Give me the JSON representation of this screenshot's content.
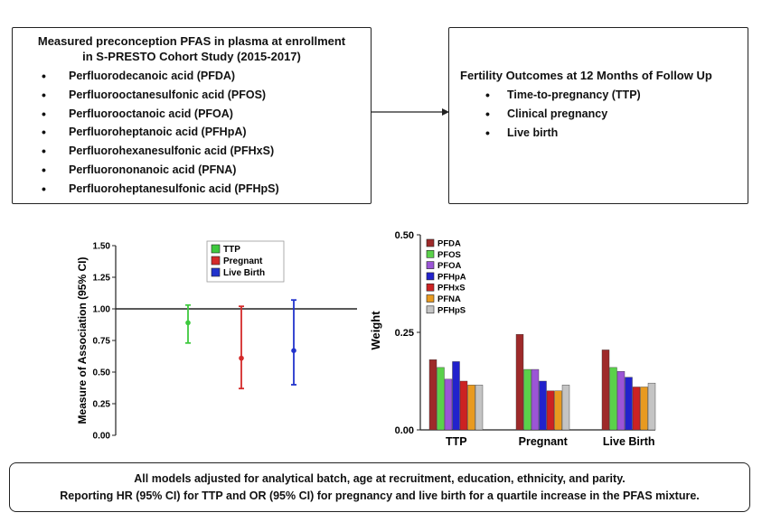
{
  "exposure": {
    "title_line1": "Measured preconception PFAS in plasma at enrollment",
    "title_line2": "in S-PRESTO Cohort Study (2015-2017)",
    "items": [
      "Perfluorodecanoic acid (PFDA)",
      "Perfluorooctanesulfonic acid (PFOS)",
      "Perfluorooctanoic acid (PFOA)",
      "Perfluoroheptanoic acid (PFHpA)",
      "Perfluorohexanesulfonic acid (PFHxS)",
      "Perfluorononanoic acid (PFNA)",
      "Perfluoroheptanesulfonic acid (PFHpS)"
    ]
  },
  "outcomes": {
    "title": "Fertility Outcomes at 12 Months of Follow Up",
    "items": [
      "Time-to-pregnancy (TTP)",
      "Clinical pregnancy",
      "Live birth"
    ]
  },
  "footer": {
    "line1": "All models adjusted for analytical batch, age at recruitment, education, ethnicity, and parity.",
    "line2": "Reporting HR (95% CI) for TTP and OR (95% CI) for pregnancy and live birth for a quartile increase in the PFAS mixture."
  },
  "chart_data": [
    {
      "type": "scatter",
      "ylabel": "Measure of Association (95% CI)",
      "ylim": [
        0,
        1.5
      ],
      "yticks": [
        "0.00",
        "0.25",
        "0.50",
        "0.75",
        "1.00",
        "1.25",
        "1.50"
      ],
      "ytick_values": [
        0,
        0.25,
        0.5,
        0.75,
        1.0,
        1.25,
        1.5
      ],
      "reference_line": 1.0,
      "legend_position": "top-center",
      "series": [
        {
          "name": "TTP",
          "color": "#3ec93e",
          "estimate": 0.89,
          "lower": 0.73,
          "upper": 1.03
        },
        {
          "name": "Pregnant",
          "color": "#d42a2a",
          "estimate": 0.61,
          "lower": 0.37,
          "upper": 1.02
        },
        {
          "name": "Live Birth",
          "color": "#2233cc",
          "estimate": 0.67,
          "lower": 0.4,
          "upper": 1.07
        }
      ]
    },
    {
      "type": "bar",
      "ylabel": "Weight",
      "ylim": [
        0,
        0.5
      ],
      "yticks": [
        "0.00",
        "0.25",
        "0.50"
      ],
      "ytick_values": [
        0,
        0.25,
        0.5
      ],
      "legend_position": "top-left",
      "categories": [
        "TTP",
        "Pregnant",
        "Live Birth"
      ],
      "series": [
        {
          "name": "PFDA",
          "color": "#9e2a2a",
          "values": [
            0.18,
            0.245,
            0.205
          ]
        },
        {
          "name": "PFOS",
          "color": "#5ad14a",
          "values": [
            0.16,
            0.155,
            0.16
          ]
        },
        {
          "name": "PFOA",
          "color": "#9b55d6",
          "values": [
            0.13,
            0.155,
            0.15
          ]
        },
        {
          "name": "PFHpA",
          "color": "#2222cc",
          "values": [
            0.175,
            0.125,
            0.135
          ]
        },
        {
          "name": "PFHxS",
          "color": "#cc2222",
          "values": [
            0.125,
            0.1,
            0.11
          ]
        },
        {
          "name": "PFNA",
          "color": "#e89a20",
          "values": [
            0.115,
            0.1,
            0.11
          ]
        },
        {
          "name": "PFHpS",
          "color": "#c4c4c4",
          "values": [
            0.115,
            0.115,
            0.12
          ]
        }
      ]
    }
  ]
}
